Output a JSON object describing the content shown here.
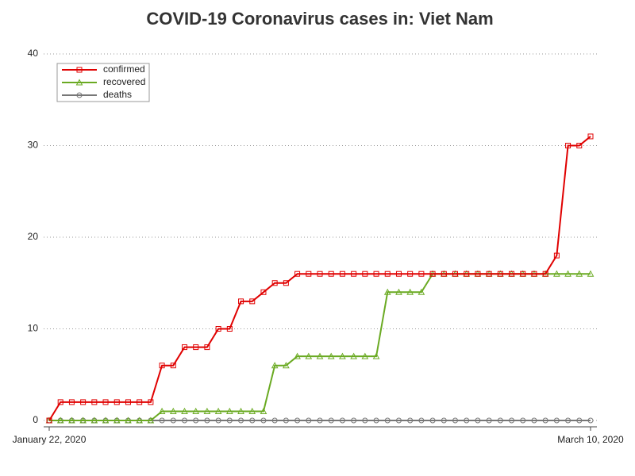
{
  "chart_data": {
    "type": "line",
    "title": "COVID-19 Coronavirus cases in: Viet Nam",
    "categories": [
      "January 22, 2020",
      null,
      null,
      null,
      null,
      null,
      null,
      null,
      null,
      null,
      null,
      null,
      null,
      null,
      null,
      null,
      null,
      null,
      null,
      null,
      null,
      null,
      null,
      null,
      null,
      null,
      null,
      null,
      null,
      null,
      null,
      null,
      null,
      null,
      null,
      null,
      null,
      null,
      null,
      null,
      null,
      null,
      null,
      null,
      null,
      null,
      null,
      null,
      "March 10, 2020"
    ],
    "series": [
      {
        "name": "confirmed",
        "color": "#e00000",
        "marker": "square",
        "values": [
          0,
          2,
          2,
          2,
          2,
          2,
          2,
          2,
          2,
          2,
          6,
          6,
          8,
          8,
          8,
          10,
          10,
          13,
          13,
          14,
          15,
          15,
          16,
          16,
          16,
          16,
          16,
          16,
          16,
          16,
          16,
          16,
          16,
          16,
          16,
          16,
          16,
          16,
          16,
          16,
          16,
          16,
          16,
          16,
          16,
          18,
          30,
          30,
          31
        ]
      },
      {
        "name": "recovered",
        "color": "#6aaa22",
        "marker": "triangle",
        "values": [
          0,
          0,
          0,
          0,
          0,
          0,
          0,
          0,
          0,
          0,
          1,
          1,
          1,
          1,
          1,
          1,
          1,
          1,
          1,
          1,
          6,
          6,
          7,
          7,
          7,
          7,
          7,
          7,
          7,
          7,
          14,
          14,
          14,
          14,
          16,
          16,
          16,
          16,
          16,
          16,
          16,
          16,
          16,
          16,
          16,
          16,
          16,
          16,
          16
        ]
      },
      {
        "name": "deaths",
        "color": "#777777",
        "marker": "circle",
        "values": [
          0,
          0,
          0,
          0,
          0,
          0,
          0,
          0,
          0,
          0,
          0,
          0,
          0,
          0,
          0,
          0,
          0,
          0,
          0,
          0,
          0,
          0,
          0,
          0,
          0,
          0,
          0,
          0,
          0,
          0,
          0,
          0,
          0,
          0,
          0,
          0,
          0,
          0,
          0,
          0,
          0,
          0,
          0,
          0,
          0,
          0,
          0,
          0,
          0
        ]
      }
    ],
    "ylim": [
      0,
      40
    ],
    "yticks": [
      0,
      10,
      20,
      30,
      40
    ],
    "grid": true,
    "legend": "top-left"
  }
}
